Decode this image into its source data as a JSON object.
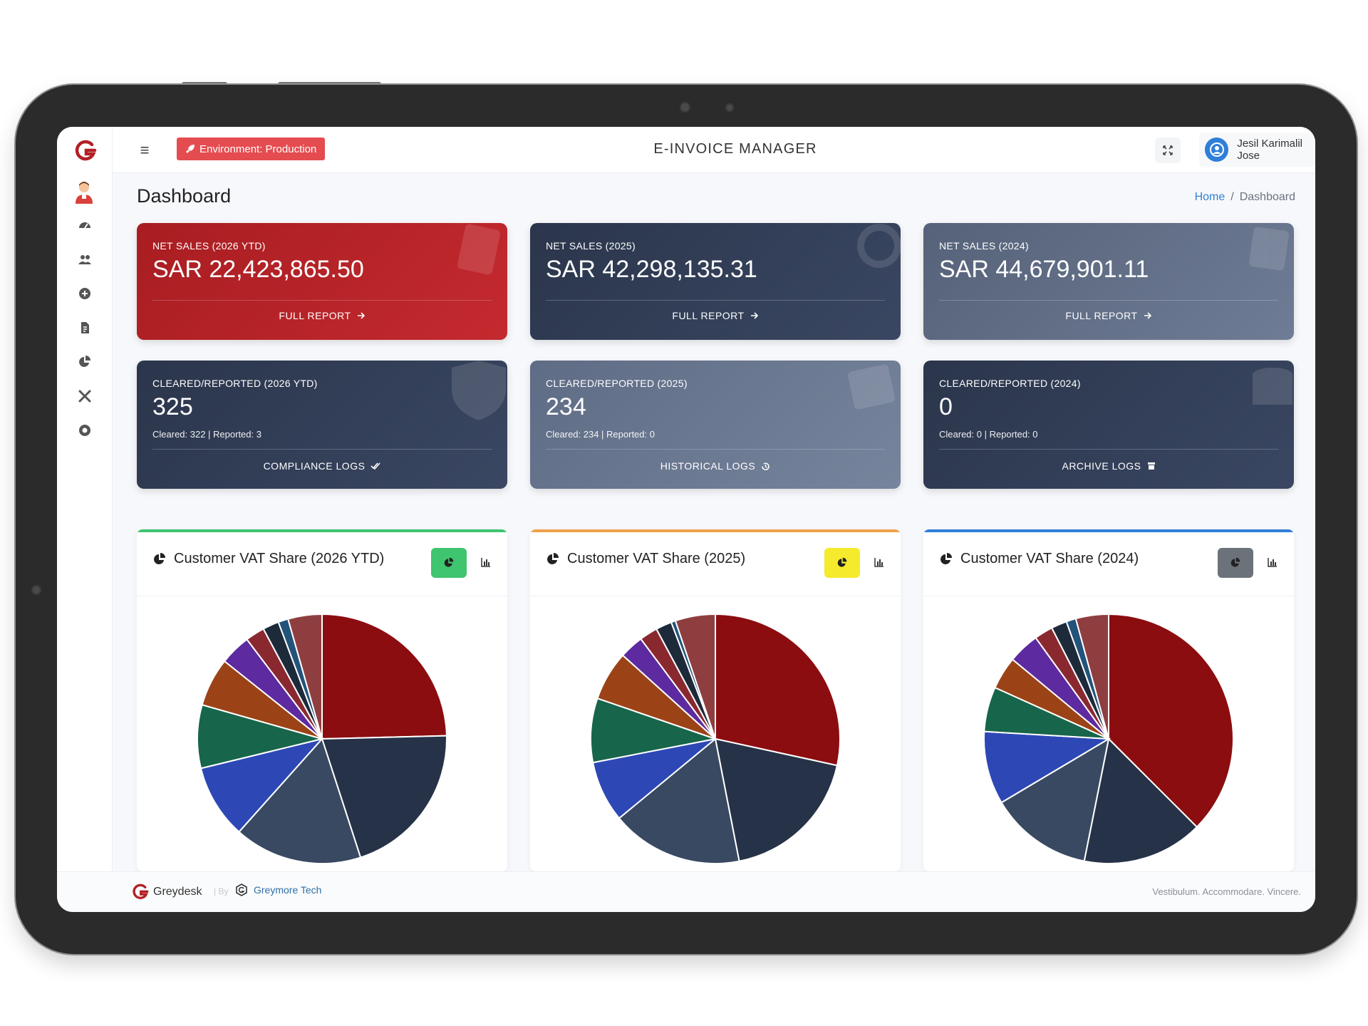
{
  "app": {
    "title": "E-INVOICE MANAGER",
    "environment": "Environment: Production",
    "user_name": "Jesil Karimalil Jose"
  },
  "page": {
    "title": "Dashboard",
    "breadcrumb": {
      "home": "Home",
      "sep": "/",
      "current": "Dashboard"
    }
  },
  "sidebar": {
    "icons": [
      "dashboard-icon",
      "customers-icon",
      "add-icon",
      "invoice-icon",
      "reports-pie-icon",
      "tools-icon",
      "support-icon"
    ]
  },
  "cards": [
    {
      "label": "NET SALES (2026 YTD)",
      "value": "SAR 22,423,865.50",
      "link": "FULL REPORT",
      "color": "#b52126"
    },
    {
      "label": "NET SALES (2025)",
      "value": "SAR 42,298,135.31",
      "link": "FULL REPORT",
      "color": "#2f3b52"
    },
    {
      "label": "NET SALES (2024)",
      "value": "SAR 44,679,901.11",
      "link": "FULL REPORT",
      "color": "#5f6c85"
    },
    {
      "label": "CLEARED/REPORTED (2026 YTD)",
      "value": "325",
      "sub": "Cleared: 322 | Reported: 3",
      "link": "COMPLIANCE LOGS",
      "color": "#2f3b52"
    },
    {
      "label": "CLEARED/REPORTED (2025)",
      "value": "234",
      "sub": "Cleared: 234 | Reported: 0",
      "link": "HISTORICAL LOGS",
      "color": "#65738d"
    },
    {
      "label": "CLEARED/REPORTED (2024)",
      "value": "0",
      "sub": "Cleared: 0 | Reported: 0",
      "link": "ARCHIVE LOGS",
      "color": "#2f3b52"
    }
  ],
  "charts": [
    {
      "title": "Customer VAT Share (2026 YTD)",
      "accent": "#3fc46f",
      "button_color": "#3fc46f"
    },
    {
      "title": "Customer VAT Share (2025)",
      "accent": "#f0a24a",
      "button_color": "#f5ea2c"
    },
    {
      "title": "Customer VAT Share (2024)",
      "accent": "#2f7fd8",
      "button_color": "#6c727a"
    }
  ],
  "chart_data": [
    {
      "type": "pie",
      "title": "Customer VAT Share (2026 YTD)",
      "values": [
        24.6,
        20.4,
        16.6,
        9.6,
        8.2,
        6.3,
        4.0,
        2.5,
        2.1,
        1.3,
        4.4
      ],
      "colors": [
        "#8b0d10",
        "#263247",
        "#394962",
        "#2d48b5",
        "#17654a",
        "#9b4317",
        "#5d2aa0",
        "#8a2830",
        "#1d2a3a",
        "#22537a",
        "#8f3e40"
      ]
    },
    {
      "type": "pie",
      "title": "Customer VAT Share (2025)",
      "values": [
        30.1,
        19.6,
        18.1,
        8.4,
        8.8,
        6.8,
        3.3,
        2.5,
        2.2,
        0.6,
        5.5
      ],
      "colors": [
        "#8b0d10",
        "#263247",
        "#394962",
        "#2d48b5",
        "#17654a",
        "#9b4317",
        "#5d2aa0",
        "#8a2830",
        "#1d2a3a",
        "#22537a",
        "#8f3e40"
      ]
    },
    {
      "type": "pie",
      "title": "Customer VAT Share (2024)",
      "values": [
        38.8,
        16.2,
        13.8,
        9.8,
        6.0,
        4.4,
        4.2,
        2.5,
        2.1,
        1.3,
        4.4
      ],
      "colors": [
        "#8b0d10",
        "#263247",
        "#394962",
        "#2d48b5",
        "#17654a",
        "#9b4317",
        "#5d2aa0",
        "#8a2830",
        "#1d2a3a",
        "#22537a",
        "#8f3e40"
      ]
    }
  ],
  "footer": {
    "brand": "Greydesk",
    "by": "| By",
    "company": "Greymore Tech",
    "tagline": "Vestibulum. Accommodare. Vincere."
  }
}
